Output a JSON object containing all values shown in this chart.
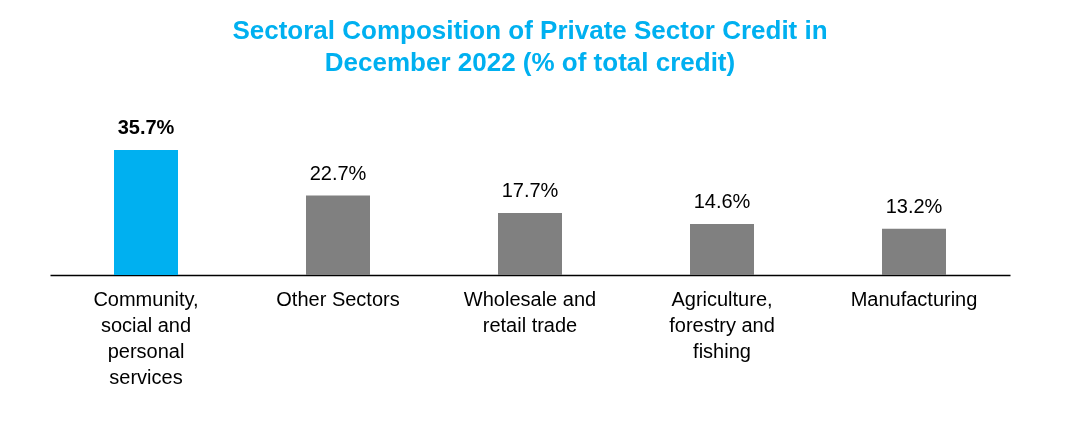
{
  "chart_data": {
    "type": "bar",
    "title": "Sectoral Composition of Private Sector Credit in December 2022 (% of total credit)",
    "categories": [
      "Community, social and personal services",
      "Other Sectors",
      "Wholesale and retail trade",
      "Agriculture, forestry and fishing",
      "Manufacturing"
    ],
    "values": [
      35.7,
      22.7,
      17.7,
      14.6,
      13.2
    ],
    "colors": [
      "#00b0f0",
      "#808080",
      "#808080",
      "#808080",
      "#808080"
    ],
    "value_labels": [
      "35.7%",
      "22.7%",
      "17.7%",
      "14.6%",
      "13.2%"
    ],
    "grid": false
  }
}
